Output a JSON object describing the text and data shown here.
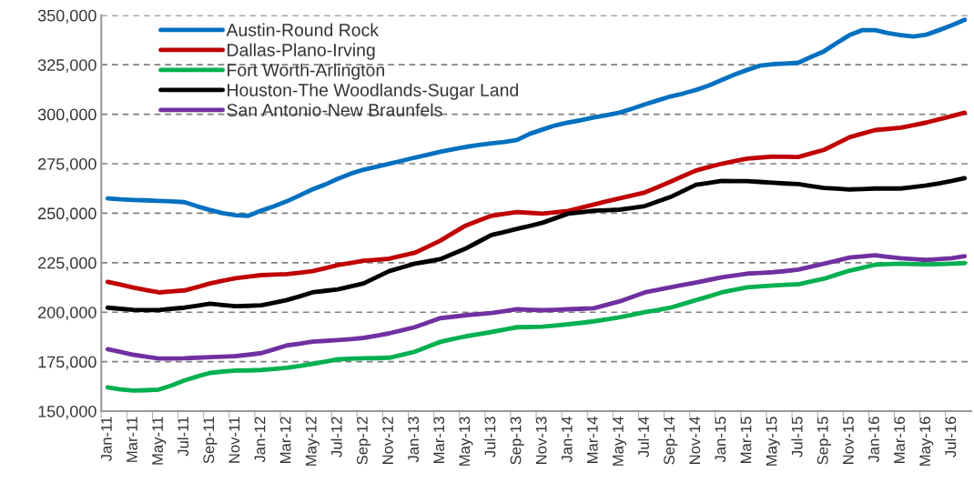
{
  "chart_data": {
    "type": "line",
    "categories": [
      "Jan-11",
      null,
      "Mar-11",
      null,
      "May-11",
      null,
      "Jul-11",
      null,
      "Sep-11",
      null,
      "Nov-11",
      null,
      "Jan-12",
      null,
      "Mar-12",
      null,
      "May-12",
      null,
      "Jul-12",
      null,
      "Sep-12",
      null,
      "Nov-12",
      null,
      "Jan-13",
      null,
      "Mar-13",
      null,
      "May-13",
      null,
      "Jul-13",
      null,
      "Sep-13",
      null,
      "Nov-13",
      null,
      "Jan-14",
      null,
      "Mar-14",
      null,
      "May-14",
      null,
      "Jul-14",
      null,
      "Sep-14",
      null,
      "Nov-14",
      null,
      "Jan-15",
      null,
      "Mar-15",
      null,
      "May-15",
      null,
      "Jul-15",
      null,
      "Sep-15",
      null,
      "Nov-15",
      null,
      "Jan-16",
      null,
      "Mar-16",
      null,
      "May-16",
      null,
      "Jul-16",
      null
    ],
    "series": [
      {
        "name": "Austin-Round Rock",
        "color": "#0070c0",
        "values": [
          257500,
          257000,
          256700,
          256500,
          256200,
          256000,
          255600,
          253500,
          251600,
          250000,
          249000,
          248700,
          251300,
          253500,
          256000,
          259000,
          262000,
          264500,
          267400,
          270000,
          272000,
          273500,
          275000,
          276500,
          278100,
          279500,
          281000,
          282300,
          283500,
          284500,
          285300,
          286000,
          287000,
          290100,
          292300,
          294400,
          295800,
          297000,
          298400,
          299500,
          300800,
          302800,
          305000,
          307000,
          309000,
          310500,
          312300,
          314500,
          317300,
          320000,
          322400,
          324600,
          325300,
          325600,
          326000,
          329000,
          331800,
          336000,
          340000,
          342500,
          342500,
          341000,
          340000,
          339300,
          340200,
          342500,
          345000,
          347700
        ]
      },
      {
        "name": "Dallas-Plano-Irving",
        "color": "#c00000",
        "values": [
          215300,
          213900,
          212500,
          211200,
          210000,
          210500,
          211000,
          212700,
          214500,
          215900,
          217200,
          218000,
          218700,
          219000,
          219200,
          219900,
          220700,
          222200,
          223800,
          224900,
          226000,
          226500,
          227000,
          228500,
          230000,
          233000,
          236100,
          240000,
          243800,
          246300,
          248700,
          249700,
          250600,
          250200,
          249800,
          250500,
          251200,
          252800,
          254400,
          256000,
          257500,
          259000,
          260500,
          263200,
          265900,
          268800,
          271600,
          273300,
          275000,
          276300,
          277600,
          278100,
          278600,
          278500,
          278400,
          280200,
          282000,
          285200,
          288400,
          290200,
          292000,
          292600,
          293200,
          294500,
          295800,
          297500,
          299100,
          300800
        ]
      },
      {
        "name": "Fort Worth-Arlington",
        "color": "#00b050",
        "values": [
          162000,
          161000,
          160400,
          160600,
          160900,
          163000,
          165500,
          167500,
          169300,
          170000,
          170500,
          170600,
          170800,
          171300,
          171900,
          172800,
          173900,
          175000,
          176200,
          176500,
          176700,
          176800,
          177000,
          178400,
          180000,
          182500,
          185000,
          186500,
          187800,
          188900,
          190000,
          191200,
          192400,
          192500,
          192700,
          193300,
          193900,
          194600,
          195400,
          196400,
          197400,
          198700,
          200000,
          201100,
          202300,
          204200,
          206100,
          208000,
          210000,
          211300,
          212600,
          213000,
          213500,
          213800,
          214100,
          215500,
          216900,
          219000,
          221000,
          222500,
          224000,
          224300,
          224500,
          224300,
          224200,
          224300,
          224500,
          224800
        ]
      },
      {
        "name": "Houston-The Woodlands-Sugar Land",
        "color": "#000000",
        "values": [
          202300,
          201700,
          201200,
          201100,
          201100,
          201700,
          202300,
          203300,
          204300,
          203600,
          203000,
          203200,
          203500,
          204800,
          206100,
          208000,
          210000,
          210800,
          211500,
          213000,
          214500,
          217600,
          220700,
          222600,
          224500,
          225600,
          226800,
          229500,
          232200,
          235600,
          239000,
          240500,
          242100,
          243600,
          245200,
          247500,
          249800,
          250500,
          251300,
          251500,
          251800,
          252700,
          253600,
          255900,
          258200,
          261300,
          264400,
          265300,
          266300,
          266200,
          266200,
          265800,
          265400,
          265000,
          264700,
          263700,
          262800,
          262400,
          262000,
          262200,
          262500,
          262500,
          262500,
          263200,
          264000,
          265100,
          266300,
          267700
        ]
      },
      {
        "name": "San Antonio-New Braunfels",
        "color": "#7030a0",
        "values": [
          181300,
          179900,
          178500,
          177500,
          176600,
          176600,
          176700,
          177000,
          177300,
          177500,
          177800,
          178500,
          179300,
          181200,
          183200,
          184100,
          185100,
          185500,
          185900,
          186400,
          187000,
          188100,
          189300,
          190800,
          192400,
          194700,
          197000,
          197700,
          198500,
          199000,
          199600,
          200500,
          201500,
          201200,
          201000,
          201200,
          201500,
          201700,
          202000,
          203700,
          205400,
          207700,
          210000,
          211300,
          212600,
          213800,
          215000,
          216300,
          217600,
          218500,
          219500,
          219800,
          220200,
          220800,
          221500,
          223000,
          224500,
          226000,
          227600,
          228200,
          228800,
          228000,
          227300,
          226800,
          226400,
          226800,
          227300,
          228300
        ]
      }
    ],
    "ylim": [
      150000,
      350000
    ],
    "yticks": [
      {
        "value": 150000,
        "label": "150,000"
      },
      {
        "value": 175000,
        "label": "175,000"
      },
      {
        "value": 200000,
        "label": "200,000"
      },
      {
        "value": 225000,
        "label": "225,000"
      },
      {
        "value": 250000,
        "label": "250,000"
      },
      {
        "value": 275000,
        "label": "275,000"
      },
      {
        "value": 300000,
        "label": "300,000"
      },
      {
        "value": 325000,
        "label": "325,000"
      },
      {
        "value": 350000,
        "label": "350,000"
      }
    ],
    "grid": "y",
    "legend": "top left",
    "marker": "none",
    "line_style": "solid"
  }
}
